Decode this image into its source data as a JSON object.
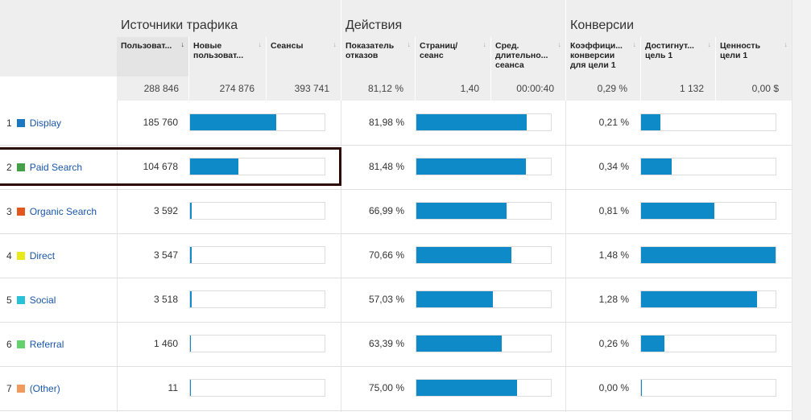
{
  "groups": {
    "traffic": "Источники трафика",
    "actions": "Действия",
    "conversions": "Конверсии"
  },
  "columns": {
    "users": "Пользоват...",
    "new_users": "Новые пользоват...",
    "sessions": "Сеансы",
    "bounce": "Показатель отказов",
    "pages": "Страниц/ сеанс",
    "duration": "Сред. длительно... сеанса",
    "conv_rate": "Коэффици... конверсии для цели 1",
    "goal_reached": "Достигнут... цель 1",
    "goal_value": "Ценность цели 1"
  },
  "totals": {
    "users": "288 846",
    "new_users": "274 876",
    "sessions": "393 741",
    "bounce": "81,12 %",
    "pages": "1,40",
    "duration": "00:00:40",
    "conv_rate": "0,29 %",
    "goal_reached": "1 132",
    "goal_value": "0,00 $"
  },
  "rows": [
    {
      "index": "1",
      "name": "Display",
      "color": "#1a78c2",
      "users": "185 760",
      "users_share": 0.643,
      "bounce": "81,98 %",
      "bounce_level": 0.8198,
      "conv": "0,21 %",
      "conv_share": 0.142
    },
    {
      "index": "2",
      "name": "Paid Search",
      "color": "#43a047",
      "users": "104 678",
      "users_share": 0.362,
      "bounce": "81,48 %",
      "bounce_level": 0.8148,
      "conv": "0,34 %",
      "conv_share": 0.23
    },
    {
      "index": "3",
      "name": "Organic Search",
      "color": "#e2571e",
      "users": "3 592",
      "users_share": 0.012,
      "bounce": "66,99 %",
      "bounce_level": 0.6699,
      "conv": "0,81 %",
      "conv_share": 0.547
    },
    {
      "index": "4",
      "name": "Direct",
      "color": "#e8e81a",
      "users": "3 547",
      "users_share": 0.012,
      "bounce": "70,66 %",
      "bounce_level": 0.7066,
      "conv": "1,48 %",
      "conv_share": 1.0
    },
    {
      "index": "5",
      "name": "Social",
      "color": "#27c1d8",
      "users": "3 518",
      "users_share": 0.012,
      "bounce": "57,03 %",
      "bounce_level": 0.5703,
      "conv": "1,28 %",
      "conv_share": 0.865
    },
    {
      "index": "6",
      "name": "Referral",
      "color": "#63d26c",
      "users": "1 460",
      "users_share": 0.005,
      "bounce": "63,39 %",
      "bounce_level": 0.6339,
      "conv": "0,26 %",
      "conv_share": 0.176
    },
    {
      "index": "7",
      "name": "(Other)",
      "color": "#f09a5e",
      "users": "11",
      "users_share": 0.0,
      "bounce": "75,00 %",
      "bounce_level": 0.75,
      "conv": "0,00 %",
      "conv_share": 0.0
    }
  ]
}
